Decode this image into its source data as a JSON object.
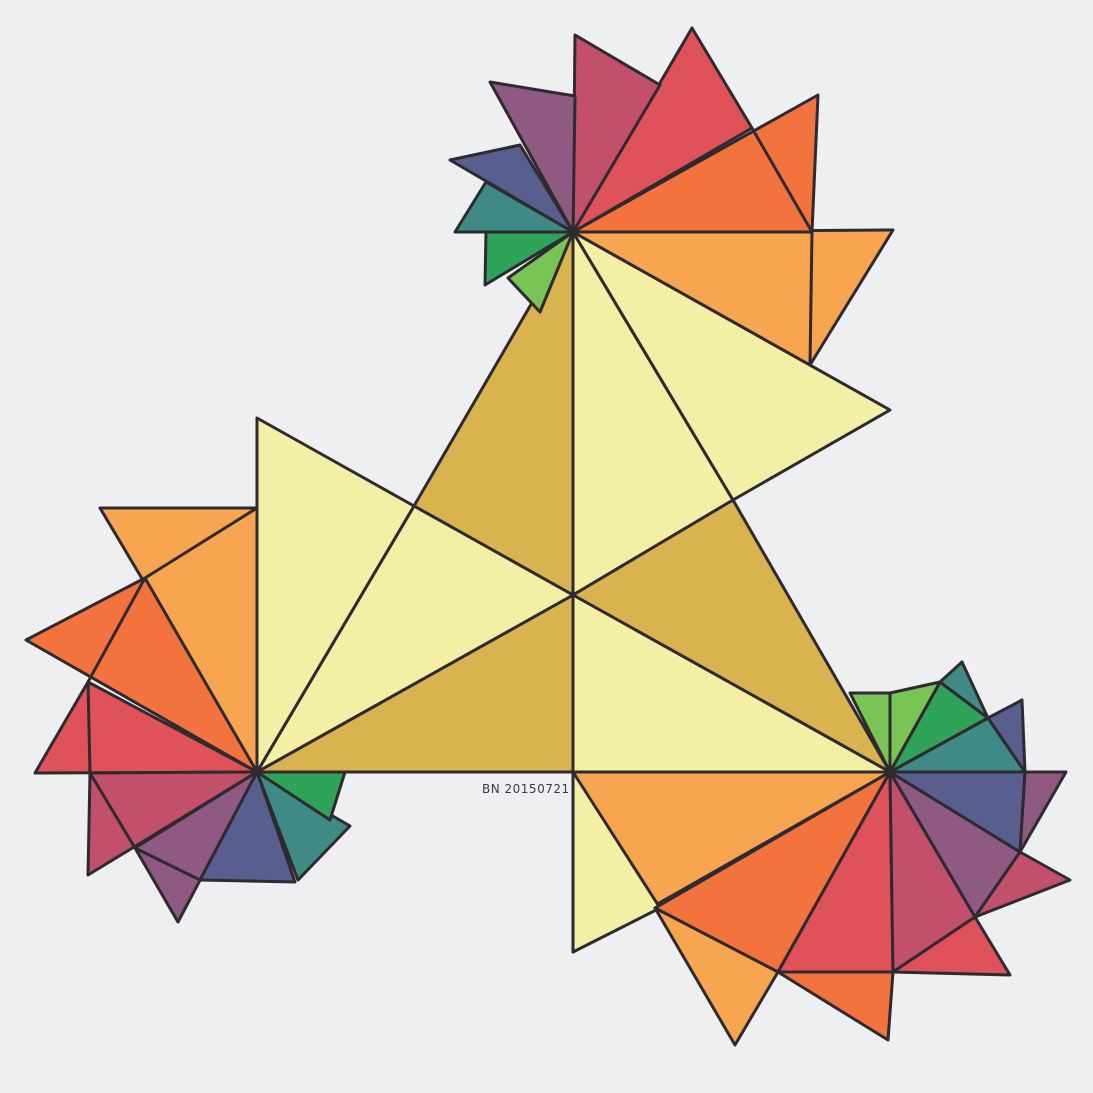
{
  "artwork": {
    "signature": "BN 20150721"
  },
  "colors": {
    "paper": "#eeeff1",
    "outline": "#2e2a30",
    "pale_yellow": "#f3f0a6",
    "ochre": "#d8b34f",
    "orange": "#f8a551",
    "red_orange": "#f3733f",
    "red": "#e0525a",
    "magenta": "#c3506b",
    "purple": "#8e5a82",
    "indigo": "#585f8f",
    "teal": "#3f8a85",
    "green": "#2fa35a",
    "lime": "#79c457"
  }
}
